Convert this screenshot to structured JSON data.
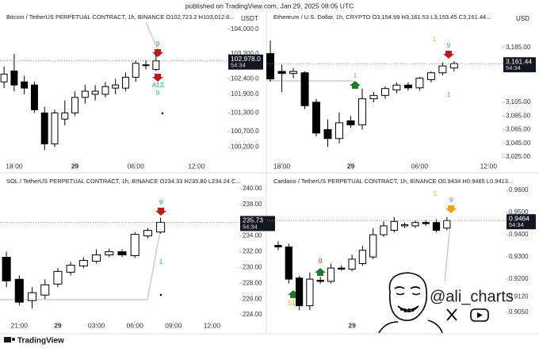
{
  "header": "published on TradingView.com, Jan 29, 2025 08:05 UTC",
  "footer": "TradingView",
  "watermark": "@ali_charts",
  "chart_data": [
    {
      "type": "candlestick",
      "title": "Bitcoin / TetherUS PERPETUAL CONTRACT, 1h, BINANCE  O102,723.2  H103,012.6...",
      "currency": "USDT",
      "countdown": "54:34",
      "up_color": "#ffffff",
      "down_color": "#000000",
      "open": [
        102300,
        102650,
        102300,
        102200,
        101300,
        100300,
        101100,
        101300,
        101800,
        101900,
        101900,
        102100,
        102100,
        102450,
        102850,
        102700
      ],
      "high": [
        102800,
        103200,
        102500,
        102300,
        101500,
        101400,
        101700,
        102000,
        102200,
        102200,
        102300,
        102400,
        102600,
        103000,
        103000,
        103200
      ],
      "low": [
        102100,
        102000,
        101900,
        101300,
        100100,
        100200,
        100900,
        101200,
        101600,
        101700,
        101800,
        101900,
        102000,
        102300,
        102700,
        102650
      ],
      "close": [
        102550,
        102200,
        102100,
        101400,
        100300,
        101300,
        101300,
        101800,
        102000,
        102000,
        102150,
        102200,
        102450,
        102900,
        102830,
        102978
      ],
      "xlim": [
        -0.4,
        21.9
      ],
      "xticks": [
        {
          "value": 1,
          "label": "18:00"
        },
        {
          "value": 7,
          "label": "29"
        },
        {
          "value": 13,
          "label": "06:00"
        },
        {
          "value": 19,
          "label": "12:00"
        }
      ],
      "ylim": [
        99700,
        104250
      ],
      "yticks": [
        {
          "value": 104000,
          "label": "104,000.0"
        },
        {
          "value": 103200,
          "label": "103,200.0"
        },
        {
          "value": 102400,
          "label": "102,400.0"
        },
        {
          "value": 101900,
          "label": "101,900.0"
        },
        {
          "value": 101300,
          "label": "101,300.0"
        },
        {
          "value": 100700,
          "label": "100,700.0"
        },
        {
          "value": 100200,
          "label": "100,200.0"
        }
      ],
      "last_price": 102978.0,
      "last_price_label": "102,978.0",
      "annotations": [
        "9",
        "A13",
        "9"
      ]
    },
    {
      "type": "candlestick",
      "title": "Ethereum / U.S. Dollar, 1h, CRYPTO  O3,154.99  H3,161.53  L3,153.45  C3,161.44...",
      "currency": "USD",
      "countdown": "54:34",
      "up_color": "#ffffff",
      "down_color": "#000000",
      "open": [
        3176,
        3150,
        3147,
        3148,
        3105,
        3065,
        3052,
        3078,
        3072,
        3110,
        3115,
        3123,
        3130,
        3126,
        3138,
        3148,
        3155
      ],
      "high": [
        3195,
        3160,
        3155,
        3150,
        3110,
        3080,
        3090,
        3085,
        3125,
        3120,
        3128,
        3134,
        3134,
        3142,
        3150,
        3163,
        3165
      ],
      "low": [
        3135,
        3120,
        3140,
        3095,
        3055,
        3040,
        3045,
        3068,
        3065,
        3105,
        3110,
        3118,
        3122,
        3122,
        3134,
        3144,
        3150
      ],
      "close": [
        3139,
        3147,
        3150,
        3100,
        3060,
        3052,
        3075,
        3072,
        3110,
        3115,
        3125,
        3130,
        3126,
        3140,
        3148,
        3158,
        3161.44
      ],
      "xlim": [
        -0.28,
        19.6
      ],
      "xticks": [
        {
          "value": 1,
          "label": "18:00"
        },
        {
          "value": 7,
          "label": "29"
        },
        {
          "value": 13,
          "label": "06:00"
        },
        {
          "value": 19,
          "label": "12:00"
        }
      ],
      "ylim": [
        3017,
        3223
      ],
      "yticks": [
        {
          "value": 3185,
          "label": "3,185.00"
        },
        {
          "value": 3105,
          "label": "3,105.00"
        },
        {
          "value": 3085,
          "label": "3,085.00"
        },
        {
          "value": 3065,
          "label": "3,065.00"
        },
        {
          "value": 3045,
          "label": "3,045.00"
        },
        {
          "value": 3025,
          "label": "3,025.00"
        }
      ],
      "last_price": 3161.44,
      "last_price_label": "3,161.44",
      "annotations": [
        "1",
        "9",
        "1",
        "1"
      ]
    },
    {
      "type": "candlestick",
      "title": "SOL / TetherUS PERPETUAL CONTRACT, 1h, BINANCE  O234.33  H235.80  L234.24  C...",
      "countdown": "54:34",
      "up_color": "#ffffff",
      "down_color": "#000000",
      "open": [
        231.3,
        228.5,
        225.8,
        226.5,
        227.9,
        229.4,
        230.2,
        230.8,
        231.6,
        232.0,
        231.5,
        234.0,
        234.5
      ],
      "high": [
        232.0,
        229.0,
        227.5,
        228.5,
        229.9,
        230.7,
        231.3,
        232.3,
        232.4,
        232.3,
        234.5,
        235.0,
        236.3
      ],
      "low": [
        227.5,
        225.2,
        224.8,
        226.0,
        227.5,
        229.0,
        229.9,
        230.5,
        231.3,
        231.3,
        231.2,
        233.7,
        234.3
      ],
      "close": [
        228.3,
        225.6,
        226.8,
        227.8,
        229.5,
        230.3,
        230.9,
        231.6,
        232.0,
        231.6,
        234.2,
        234.7,
        235.73
      ],
      "xlim": [
        -0.5,
        17.7
      ],
      "xticks": [
        {
          "value": 1,
          "label": "21:00"
        },
        {
          "value": 4,
          "label": "29"
        },
        {
          "value": 7,
          "label": "03:00"
        },
        {
          "value": 10,
          "label": "06:00"
        },
        {
          "value": 13,
          "label": "09:00"
        },
        {
          "value": 16,
          "label": "12:00"
        }
      ],
      "ylim": [
        223.2,
        240.6
      ],
      "yticks": [
        {
          "value": 240,
          "label": "240.00"
        },
        {
          "value": 238,
          "label": "238.00"
        },
        {
          "value": 236,
          "label": "236.00"
        },
        {
          "value": 234,
          "label": "234.00"
        },
        {
          "value": 232,
          "label": "232.00"
        },
        {
          "value": 230,
          "label": "230.00"
        },
        {
          "value": 228,
          "label": "228.00"
        },
        {
          "value": 226,
          "label": "226.00"
        },
        {
          "value": 224,
          "label": "224.00"
        }
      ],
      "last_price": 235.73,
      "last_price_label": "235.73",
      "annotations": [
        "9",
        "1"
      ]
    },
    {
      "type": "candlestick",
      "title": "Cardano / TetherUS PERPETUAL CONTRACT, 1h, BINANCE  O0.9434  H0.9465  L0.9413...",
      "countdown": "54:34",
      "up_color": "#ffffff",
      "down_color": "#000000",
      "open": [
        0.9352,
        0.9345,
        0.9205,
        0.908,
        0.9195,
        0.919,
        0.925,
        0.9245,
        0.927,
        0.93,
        0.94,
        0.942,
        0.944,
        0.944,
        0.9455,
        0.9455,
        0.943
      ],
      "high": [
        0.937,
        0.936,
        0.9215,
        0.923,
        0.921,
        0.927,
        0.9262,
        0.931,
        0.935,
        0.943,
        0.946,
        0.948,
        0.9455,
        0.9465,
        0.9465,
        0.947,
        0.948
      ],
      "low": [
        0.933,
        0.918,
        0.906,
        0.906,
        0.918,
        0.918,
        0.9238,
        0.9235,
        0.926,
        0.929,
        0.939,
        0.941,
        0.943,
        0.943,
        0.944,
        0.941,
        0.942
      ],
      "close": [
        0.9345,
        0.92,
        0.908,
        0.92,
        0.919,
        0.925,
        0.9245,
        0.929,
        0.933,
        0.94,
        0.944,
        0.946,
        0.9445,
        0.9455,
        0.945,
        0.942,
        0.9464
      ],
      "xlim": [
        -1.05,
        20.6
      ],
      "xticks": [
        {
          "value": 7,
          "label": "29"
        }
      ],
      "ylim": [
        0.9011,
        0.9629
      ],
      "yticks": [
        {
          "value": 0.96,
          "label": "0.9600"
        },
        {
          "value": 0.95,
          "label": "0.9500"
        },
        {
          "value": 0.94,
          "label": "0.9400"
        },
        {
          "value": 0.93,
          "label": "0.9300"
        },
        {
          "value": 0.92,
          "label": "0.9200"
        },
        {
          "value": 0.912,
          "label": "0.9120"
        },
        {
          "value": 0.905,
          "label": "0.9050"
        }
      ],
      "last_price": 0.9464,
      "last_price_label": "0.9464",
      "annotations": [
        "1",
        "9",
        "9",
        "S13"
      ]
    }
  ]
}
